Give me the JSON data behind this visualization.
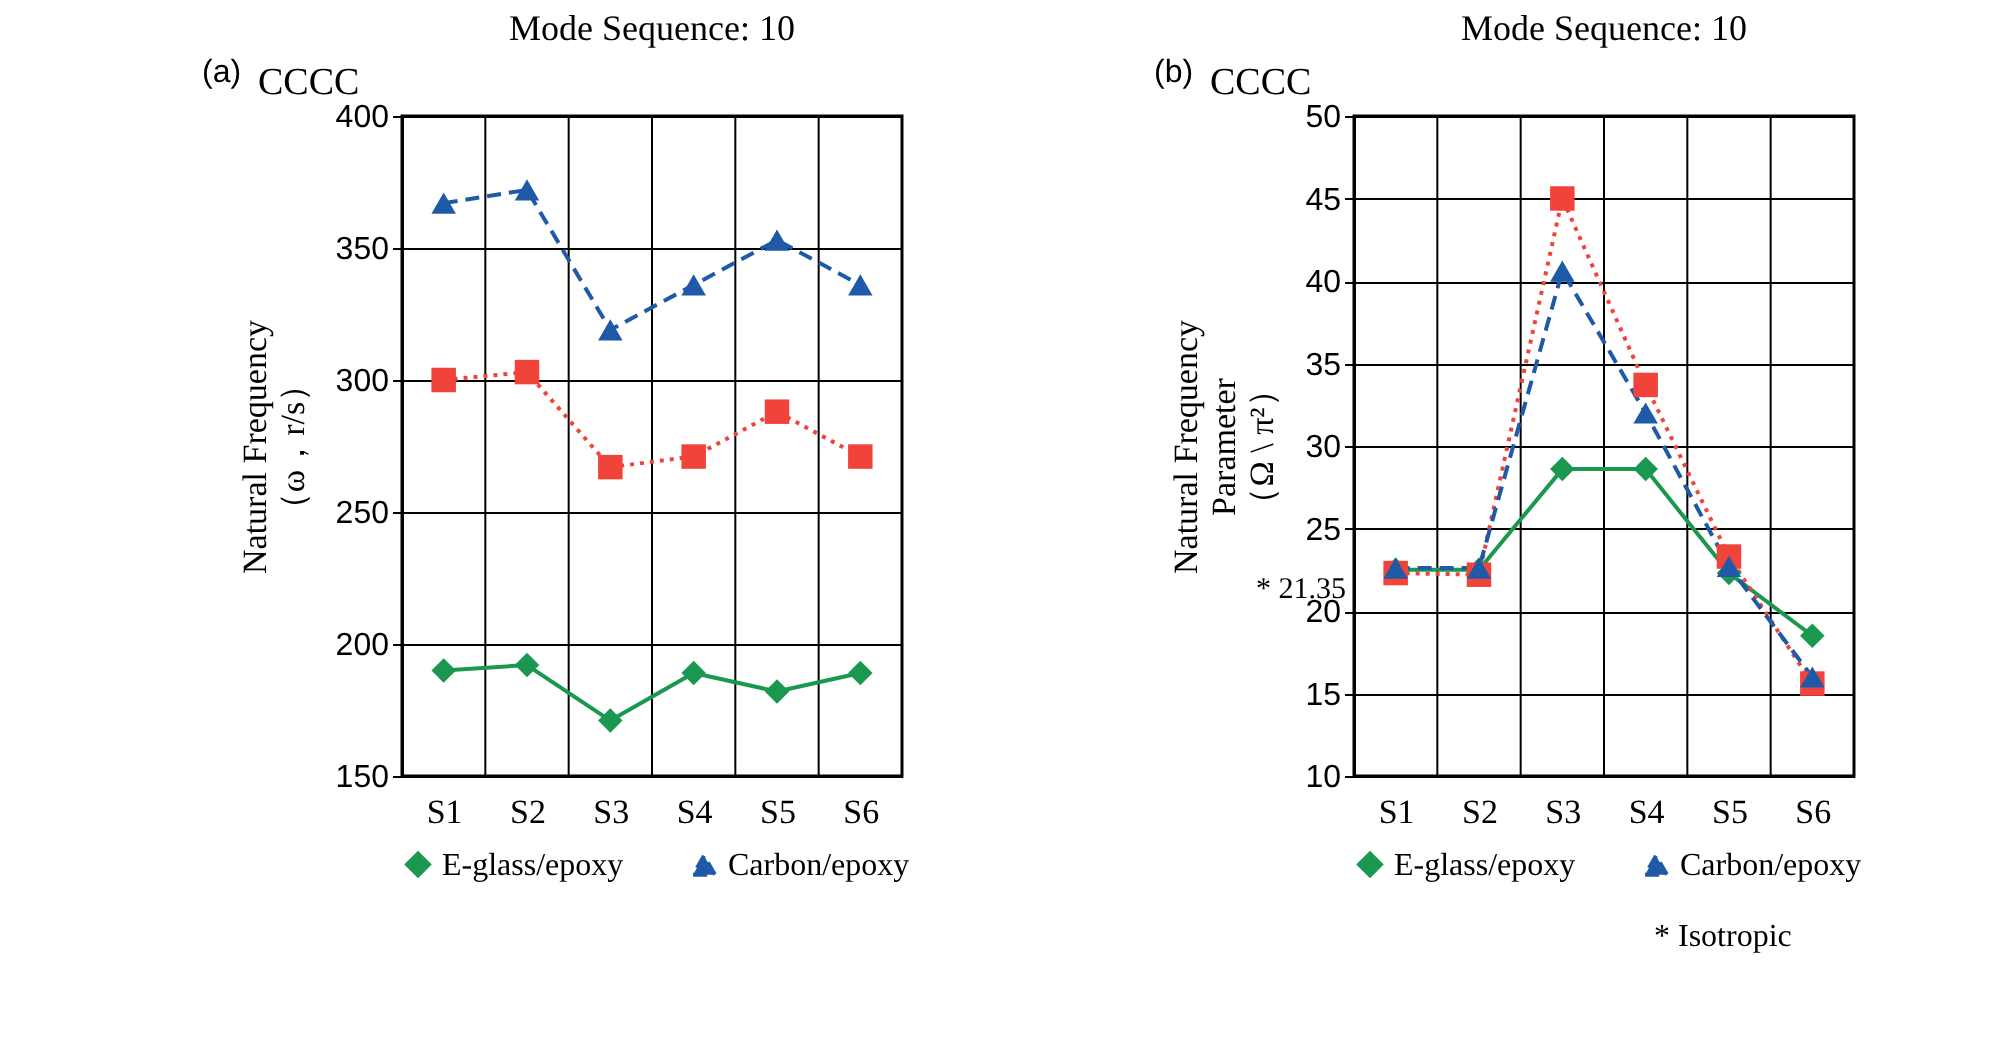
{
  "chart_data": [
    {
      "type": "line",
      "title": "Mode Sequence: 10",
      "ylabel": "Natural Frequency\n（ω，r/s）",
      "annotations": [
        "(a)",
        "CCCC"
      ],
      "categories": [
        "S1",
        "S2",
        "S3",
        "S4",
        "S5",
        "S6"
      ],
      "series": [
        {
          "name": "E-glass/epoxy",
          "color": "#1a9850",
          "marker": "diamond",
          "line_style": "solid",
          "values": [
            190,
            192,
            171,
            189,
            182,
            189
          ]
        },
        {
          "color": "#f0443a",
          "marker": "square",
          "line_style": "dotted",
          "values": [
            300,
            303,
            267,
            271,
            288,
            271
          ]
        },
        {
          "name": "Carbon/epoxy",
          "color": "#1f5aa8",
          "marker": "triangle",
          "line_style": "dashed",
          "values": [
            367,
            372,
            319,
            336,
            353,
            336
          ]
        }
      ],
      "ylim": [
        150,
        400
      ],
      "yticks": [
        150,
        200,
        250,
        300,
        350,
        400
      ],
      "grid": true,
      "legend": "bottom"
    },
    {
      "type": "line",
      "title": "Mode Sequence: 10",
      "ylabel": "Natural Frequency\nParameter\n（Ω \\ π²）",
      "annotations": [
        "(b)",
        "CCCC",
        "*   Isotropic",
        "* 21.35"
      ],
      "categories": [
        "S1",
        "S2",
        "S3",
        "S4",
        "S5",
        "S6"
      ],
      "series": [
        {
          "name": "E-glass/epoxy",
          "color": "#1a9850",
          "marker": "diamond",
          "line_style": "solid",
          "values": [
            22.5,
            22.5,
            28.6,
            28.6,
            22.3,
            18.5
          ]
        },
        {
          "color": "#f0443a",
          "marker": "square",
          "line_style": "dotted",
          "values": [
            22.3,
            22.2,
            45.0,
            33.7,
            23.3,
            15.6
          ]
        },
        {
          "name": "Carbon/epoxy",
          "color": "#1f5aa8",
          "marker": "triangle",
          "line_style": "dashed",
          "values": [
            22.6,
            22.6,
            40.6,
            32.0,
            22.7,
            16.0
          ]
        }
      ],
      "ylim": [
        10,
        50
      ],
      "yticks": [
        10,
        15,
        20,
        25,
        30,
        35,
        40,
        45,
        50
      ],
      "grid": true,
      "legend": "bottom"
    }
  ]
}
